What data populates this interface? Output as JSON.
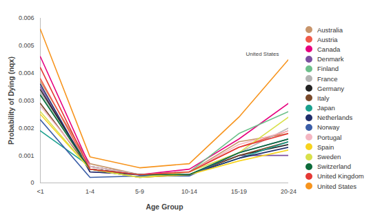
{
  "chart_data": {
    "type": "line",
    "x_label": "Age Group",
    "y_label": "Probability of Dying (nqx)",
    "categories": [
      "<1",
      "1-4",
      "5-9",
      "10-14",
      "15-19",
      "20-24"
    ],
    "ylim": [
      0,
      0.006
    ],
    "yticks": [
      0,
      0.001,
      0.002,
      0.003,
      0.004,
      0.005,
      0.006
    ],
    "legend": "right",
    "annotations": [
      {
        "text": "United States",
        "series": "United States"
      }
    ],
    "series": [
      {
        "name": "Australia",
        "color": "#c8956b",
        "values": [
          0.0037,
          0.0007,
          0.0003,
          0.0004,
          0.0015,
          0.0018
        ]
      },
      {
        "name": "Austria",
        "color": "#f05a4a",
        "values": [
          0.0038,
          0.0005,
          0.0003,
          0.0004,
          0.0013,
          0.0019
        ]
      },
      {
        "name": "Canada",
        "color": "#e6007e",
        "values": [
          0.0046,
          0.0006,
          0.0003,
          0.0005,
          0.0016,
          0.0029
        ]
      },
      {
        "name": "Denmark",
        "color": "#7b4fa0",
        "values": [
          0.0035,
          0.0004,
          0.0003,
          0.0003,
          0.001,
          0.001
        ]
      },
      {
        "name": "Finland",
        "color": "#6cc08b",
        "values": [
          0.0032,
          0.0006,
          0.0003,
          0.0004,
          0.0018,
          0.0026
        ]
      },
      {
        "name": "France",
        "color": "#b3b3b3",
        "values": [
          0.0033,
          0.0006,
          0.0003,
          0.0004,
          0.0011,
          0.002
        ]
      },
      {
        "name": "Germany",
        "color": "#222222",
        "values": [
          0.0034,
          0.0005,
          0.0003,
          0.0003,
          0.001,
          0.0014
        ]
      },
      {
        "name": "Italy",
        "color": "#7a4a2a",
        "values": [
          0.0029,
          0.0005,
          0.0002,
          0.0003,
          0.001,
          0.0015
        ]
      },
      {
        "name": "Japan",
        "color": "#1aa08e",
        "values": [
          0.0019,
          0.0006,
          0.0003,
          0.0003,
          0.0009,
          0.0015
        ]
      },
      {
        "name": "Netherlands",
        "color": "#1f2d6b",
        "values": [
          0.0036,
          0.0004,
          0.0003,
          0.0003,
          0.0009,
          0.0013
        ]
      },
      {
        "name": "Norway",
        "color": "#3b5ea8",
        "values": [
          0.0023,
          0.0002,
          0.00025,
          0.00025,
          0.0011,
          0.0016
        ]
      },
      {
        "name": "Portugal",
        "color": "#f4b6c2",
        "values": [
          0.0028,
          0.0006,
          0.0003,
          0.0004,
          0.0014,
          0.0019
        ]
      },
      {
        "name": "Spain",
        "color": "#f7d31e",
        "values": [
          0.0025,
          0.0005,
          0.0002,
          0.0003,
          0.0008,
          0.0012
        ]
      },
      {
        "name": "Sweden",
        "color": "#d8e04a",
        "values": [
          0.0026,
          0.0005,
          0.0002,
          0.0004,
          0.0011,
          0.0024
        ]
      },
      {
        "name": "Switzerland",
        "color": "#0d6b3a",
        "values": [
          0.0032,
          0.0005,
          0.0003,
          0.0003,
          0.0011,
          0.0016
        ]
      },
      {
        "name": "United Kingdom",
        "color": "#e53935",
        "values": [
          0.0042,
          0.0005,
          0.0003,
          0.0004,
          0.0013,
          0.0018
        ]
      },
      {
        "name": "United States",
        "color": "#f7941d",
        "values": [
          0.0056,
          0.00095,
          0.00055,
          0.0007,
          0.0024,
          0.0045
        ]
      }
    ]
  }
}
